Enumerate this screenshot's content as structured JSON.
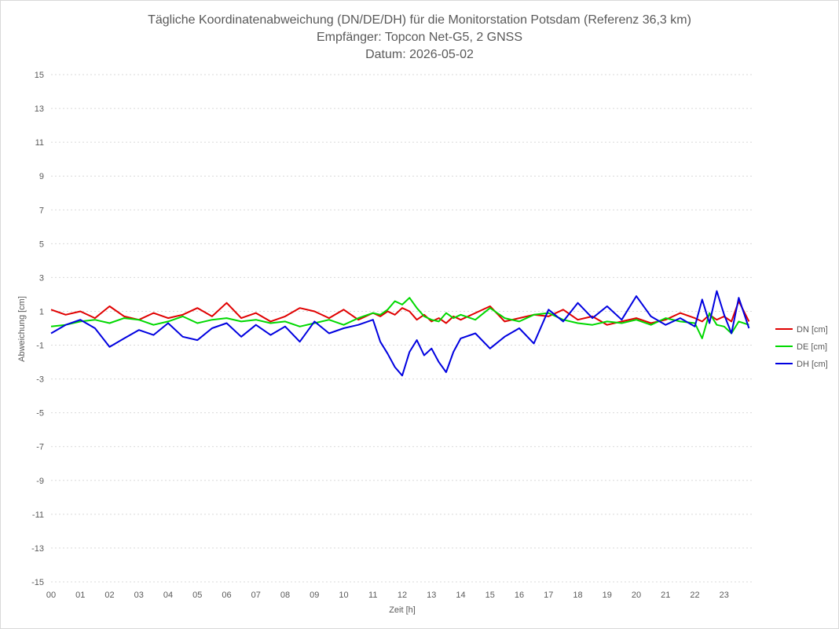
{
  "chart_data": {
    "type": "line",
    "title": "Tägliche Koordinatenabweichung (DN/DE/DH) für die Monitorstation Potsdam (Referenz 36,3 km)",
    "subtitle": "Empfänger: Topcon Net-G5, 2 GNSS",
    "date_line": "Datum: 2026-05-02",
    "xlabel": "Zeit [h]",
    "ylabel": "Abweichung [cm]",
    "xlim": [
      0,
      24
    ],
    "ylim": [
      -15,
      15
    ],
    "y_ticks": [
      15,
      13,
      11,
      9,
      7,
      5,
      3,
      1,
      -1,
      -3,
      -5,
      -7,
      -9,
      -11,
      -13,
      -15
    ],
    "x_ticks": [
      {
        "value": 0,
        "label": "00"
      },
      {
        "value": 1,
        "label": "01"
      },
      {
        "value": 2,
        "label": "02"
      },
      {
        "value": 3,
        "label": "03"
      },
      {
        "value": 4,
        "label": "04"
      },
      {
        "value": 5,
        "label": "05"
      },
      {
        "value": 6,
        "label": "06"
      },
      {
        "value": 7,
        "label": "07"
      },
      {
        "value": 8,
        "label": "08"
      },
      {
        "value": 9,
        "label": "09"
      },
      {
        "value": 10,
        "label": "10"
      },
      {
        "value": 11,
        "label": "11"
      },
      {
        "value": 12,
        "label": "12"
      },
      {
        "value": 13,
        "label": "13"
      },
      {
        "value": 14,
        "label": "14"
      },
      {
        "value": 15,
        "label": "15"
      },
      {
        "value": 16,
        "label": "16"
      },
      {
        "value": 17,
        "label": "17"
      },
      {
        "value": 18,
        "label": "18"
      },
      {
        "value": 19,
        "label": "19"
      },
      {
        "value": 20,
        "label": "20"
      },
      {
        "value": 21,
        "label": "21"
      },
      {
        "value": 22,
        "label": "22"
      },
      {
        "value": 23,
        "label": "23"
      }
    ],
    "grid": "horizontal dashed",
    "legend_position": "right",
    "x": [
      0,
      0.5,
      1,
      1.5,
      2,
      2.5,
      3,
      3.5,
      4,
      4.5,
      5,
      5.5,
      6,
      6.5,
      7,
      7.5,
      8,
      8.5,
      9,
      9.5,
      10,
      10.5,
      11,
      11.25,
      11.5,
      11.75,
      12,
      12.25,
      12.5,
      12.75,
      13,
      13.25,
      13.5,
      13.75,
      14,
      14.5,
      15,
      15.5,
      16,
      16.5,
      17,
      17.5,
      18,
      18.5,
      19,
      19.5,
      20,
      20.5,
      21,
      21.5,
      22,
      22.25,
      22.5,
      22.75,
      23,
      23.25,
      23.5,
      23.85
    ],
    "series": [
      {
        "name": "DN [cm]",
        "color": "#e00000",
        "values": [
          1.1,
          0.8,
          1.0,
          0.6,
          1.3,
          0.7,
          0.5,
          0.9,
          0.6,
          0.8,
          1.2,
          0.7,
          1.5,
          0.6,
          0.9,
          0.4,
          0.7,
          1.2,
          1.0,
          0.6,
          1.1,
          0.5,
          0.9,
          0.7,
          1.0,
          0.8,
          1.2,
          1.0,
          0.5,
          0.8,
          0.4,
          0.6,
          0.3,
          0.7,
          0.5,
          0.9,
          1.3,
          0.4,
          0.6,
          0.8,
          0.7,
          1.1,
          0.5,
          0.7,
          0.2,
          0.4,
          0.6,
          0.3,
          0.5,
          0.9,
          0.6,
          0.4,
          0.8,
          0.5,
          0.7,
          0.4,
          1.6,
          0.4
        ]
      },
      {
        "name": "DE [cm]",
        "color": "#00d800",
        "values": [
          0.1,
          0.2,
          0.4,
          0.5,
          0.3,
          0.6,
          0.5,
          0.2,
          0.4,
          0.7,
          0.3,
          0.5,
          0.6,
          0.4,
          0.5,
          0.3,
          0.4,
          0.1,
          0.3,
          0.5,
          0.2,
          0.6,
          0.9,
          0.8,
          1.1,
          1.6,
          1.4,
          1.8,
          1.2,
          0.7,
          0.5,
          0.4,
          0.9,
          0.6,
          0.8,
          0.5,
          1.2,
          0.6,
          0.4,
          0.8,
          0.9,
          0.5,
          0.3,
          0.2,
          0.4,
          0.3,
          0.5,
          0.2,
          0.6,
          0.4,
          0.3,
          -0.6,
          0.9,
          0.2,
          0.1,
          -0.3,
          0.4,
          0.2
        ]
      },
      {
        "name": "DH [cm]",
        "color": "#0000e0",
        "values": [
          -0.3,
          0.2,
          0.5,
          0.0,
          -1.1,
          -0.6,
          -0.1,
          -0.4,
          0.3,
          -0.5,
          -0.7,
          0.0,
          0.3,
          -0.5,
          0.2,
          -0.4,
          0.1,
          -0.8,
          0.4,
          -0.3,
          0.0,
          0.2,
          0.5,
          -0.8,
          -1.5,
          -2.3,
          -2.8,
          -1.4,
          -0.7,
          -1.6,
          -1.2,
          -2.0,
          -2.6,
          -1.4,
          -0.6,
          -0.3,
          -1.2,
          -0.5,
          0.0,
          -0.9,
          1.1,
          0.4,
          1.5,
          0.6,
          1.3,
          0.5,
          1.9,
          0.7,
          0.2,
          0.6,
          0.1,
          1.7,
          0.3,
          2.2,
          0.8,
          -0.3,
          1.8,
          0.0
        ]
      }
    ]
  }
}
